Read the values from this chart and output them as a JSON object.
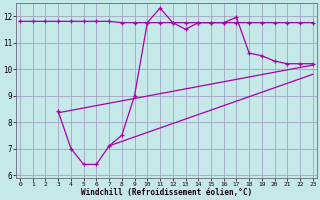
{
  "xlabel": "Windchill (Refroidissement éolien,°C)",
  "bg_color": "#c5e8e8",
  "grid_color": "#9999bb",
  "line_color": "#aa00aa",
  "x_values": [
    0,
    1,
    2,
    3,
    4,
    5,
    6,
    7,
    8,
    9,
    10,
    11,
    12,
    13,
    14,
    15,
    16,
    17,
    18,
    19,
    20,
    21,
    22,
    23
  ],
  "line1_y": [
    11.8,
    11.8,
    11.8,
    11.8,
    11.8,
    11.8,
    11.8,
    11.8,
    11.75,
    11.75,
    11.75,
    11.75,
    11.75,
    11.75,
    11.75,
    11.75,
    11.75,
    11.75,
    11.75,
    11.75,
    11.75,
    11.75,
    11.75,
    11.75
  ],
  "line2_x": [
    3,
    4,
    5,
    6,
    7,
    8,
    9,
    10,
    11,
    12,
    13,
    14,
    15,
    16,
    17,
    18,
    19,
    20,
    21,
    22,
    23
  ],
  "line2_y": [
    8.4,
    7.0,
    6.4,
    6.4,
    7.1,
    7.5,
    9.0,
    11.75,
    12.3,
    11.75,
    11.5,
    11.75,
    11.75,
    11.75,
    11.95,
    10.6,
    10.5,
    10.3,
    10.2,
    10.2,
    10.2
  ],
  "line3_x": [
    3,
    23
  ],
  "line3_y": [
    8.35,
    10.15
  ],
  "line4_x": [
    7,
    23
  ],
  "line4_y": [
    7.1,
    9.8
  ],
  "ylim": [
    5.9,
    12.5
  ],
  "xlim": [
    -0.3,
    23.3
  ],
  "yticks": [
    6,
    7,
    8,
    9,
    10,
    11,
    12
  ],
  "xticks": [
    0,
    1,
    2,
    3,
    4,
    5,
    6,
    7,
    8,
    9,
    10,
    11,
    12,
    13,
    14,
    15,
    16,
    17,
    18,
    19,
    20,
    21,
    22,
    23
  ]
}
